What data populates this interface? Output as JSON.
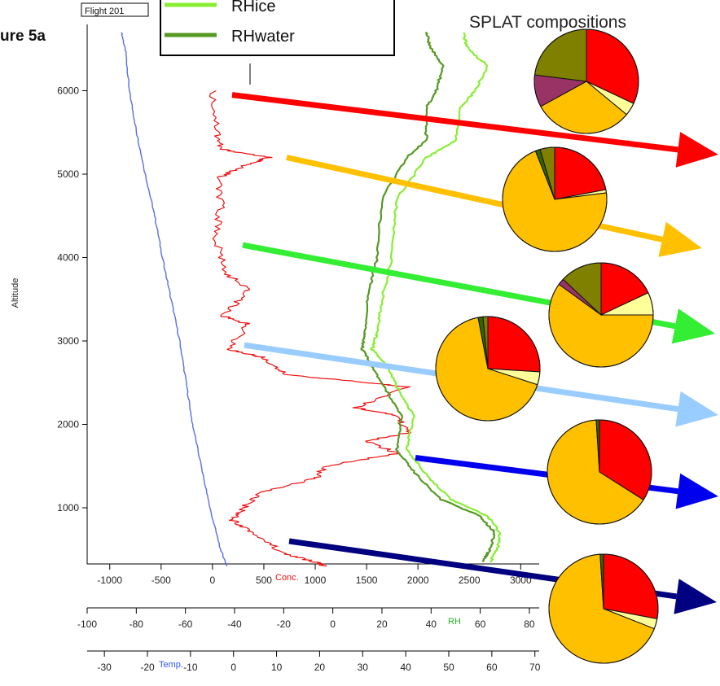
{
  "figure_label": "ure 5a",
  "flight_label": "Flight 201",
  "panel_title": "SPLAT compositions",
  "legend": [
    {
      "label": "RHice",
      "color": "#88ee33"
    },
    {
      "label": "RHwater",
      "color": "#559922"
    }
  ],
  "colors": {
    "temp": "#5a6ee8",
    "conc": "#ee1111",
    "rhice": "#88ee33",
    "rhwater": "#559922",
    "red": "#ff0000",
    "orange": "#ffc000",
    "lightyellow": "#ffff99",
    "maroon": "#993366",
    "olive": "#808000",
    "darkgreen": "#336600",
    "navy": "#000080"
  },
  "chart_data": {
    "type": "line",
    "ylabel": "Altitude",
    "y_ticks": [
      1000,
      2000,
      3000,
      4000,
      5000,
      6000
    ],
    "ylim": [
      300,
      6800
    ],
    "axes": [
      {
        "name": "Conc.",
        "color": "#ee1111",
        "ticks": [
          -1000,
          -500,
          0,
          500,
          1000,
          1500,
          2000,
          2500,
          3000
        ],
        "range": [
          -1220,
          3180
        ]
      },
      {
        "name": "RH",
        "color": "#22bb22",
        "ticks": [
          -100,
          -80,
          -60,
          -40,
          -20,
          0,
          20,
          40,
          60,
          80
        ],
        "range": [
          -100,
          84
        ]
      },
      {
        "name": "Temp.",
        "color": "#3355ff",
        "ticks": [
          -30,
          -20,
          -10,
          0,
          10,
          20,
          30,
          40,
          50,
          60,
          70
        ],
        "range": [
          -34,
          71
        ]
      }
    ],
    "series": [
      {
        "key": "temp",
        "axis": 2,
        "points": [
          [
            -26,
            6700
          ],
          [
            -25,
            6450
          ],
          [
            -24.2,
            6000
          ],
          [
            -22.5,
            5500
          ],
          [
            -20.5,
            5000
          ],
          [
            -18.3,
            4500
          ],
          [
            -16.5,
            4000
          ],
          [
            -14.5,
            3500
          ],
          [
            -12.5,
            3000
          ],
          [
            -11,
            2500
          ],
          [
            -9.5,
            2000
          ],
          [
            -7.5,
            1500
          ],
          [
            -5.5,
            1000
          ],
          [
            -3,
            500
          ],
          [
            -1.5,
            300
          ]
        ]
      },
      {
        "key": "conc",
        "points": [
          [
            0,
            6000
          ],
          [
            50,
            5500
          ],
          [
            80,
            5300
          ],
          [
            550,
            5200
          ],
          [
            300,
            5100
          ],
          [
            50,
            4950
          ],
          [
            80,
            4600
          ],
          [
            30,
            4200
          ],
          [
            150,
            3800
          ],
          [
            350,
            3600
          ],
          [
            100,
            3300
          ],
          [
            350,
            3200
          ],
          [
            150,
            2900
          ],
          [
            500,
            2800
          ],
          [
            700,
            2600
          ],
          [
            1500,
            2500
          ],
          [
            1900,
            2450
          ],
          [
            1400,
            2200
          ],
          [
            1800,
            2100
          ],
          [
            1900,
            1900
          ],
          [
            1500,
            1800
          ],
          [
            1800,
            1650
          ],
          [
            1100,
            1500
          ],
          [
            1000,
            1350
          ],
          [
            500,
            1200
          ],
          [
            300,
            1000
          ],
          [
            200,
            850
          ],
          [
            400,
            700
          ],
          [
            700,
            450
          ],
          [
            1000,
            350
          ],
          [
            1100,
            300
          ]
        ]
      },
      {
        "key": "rhice",
        "axis": 1,
        "points": [
          [
            53,
            6700
          ],
          [
            55,
            6500
          ],
          [
            63,
            6300
          ],
          [
            58,
            6000
          ],
          [
            52,
            5800
          ],
          [
            50,
            5400
          ],
          [
            38,
            5200
          ],
          [
            26,
            4700
          ],
          [
            24,
            4000
          ],
          [
            20,
            3500
          ],
          [
            18,
            3100
          ],
          [
            16,
            2900
          ],
          [
            22,
            2700
          ],
          [
            27,
            2400
          ],
          [
            33,
            2100
          ],
          [
            30,
            1700
          ],
          [
            38,
            1400
          ],
          [
            48,
            1100
          ],
          [
            63,
            900
          ],
          [
            68,
            700
          ],
          [
            67,
            500
          ],
          [
            64,
            350
          ]
        ]
      },
      {
        "key": "rhwater",
        "axis": 1,
        "points": [
          [
            38,
            6700
          ],
          [
            40,
            6500
          ],
          [
            45,
            6300
          ],
          [
            42,
            6000
          ],
          [
            38,
            5800
          ],
          [
            38,
            5400
          ],
          [
            30,
            5200
          ],
          [
            20,
            4700
          ],
          [
            18,
            4000
          ],
          [
            14,
            3500
          ],
          [
            13,
            3100
          ],
          [
            12,
            2900
          ],
          [
            16,
            2700
          ],
          [
            22,
            2400
          ],
          [
            28,
            2100
          ],
          [
            26,
            1700
          ],
          [
            34,
            1400
          ],
          [
            44,
            1100
          ],
          [
            60,
            900
          ],
          [
            66,
            700
          ],
          [
            64,
            500
          ],
          [
            61,
            350
          ]
        ]
      }
    ],
    "compositions": [
      {
        "marker_altitude": 5950,
        "arrow_color": "#ff0000",
        "slices": [
          {
            "color": "#ff0000",
            "value": 32
          },
          {
            "color": "#ffff99",
            "value": 4
          },
          {
            "color": "#ffc000",
            "value": 31
          },
          {
            "color": "#993366",
            "value": 10
          },
          {
            "color": "#808000",
            "value": 23
          }
        ]
      },
      {
        "marker_altitude": 5200,
        "arrow_color": "#ffc000",
        "slices": [
          {
            "color": "#ff0000",
            "value": 22
          },
          {
            "color": "#ffff99",
            "value": 1
          },
          {
            "color": "#ffc000",
            "value": 71
          },
          {
            "color": "#336600",
            "value": 1.5
          },
          {
            "color": "#808000",
            "value": 4.5
          }
        ]
      },
      {
        "marker_altitude": 4150,
        "arrow_color": "#33ee33",
        "slices": [
          {
            "color": "#ff0000",
            "value": 18
          },
          {
            "color": "#ffff99",
            "value": 7
          },
          {
            "color": "#ffc000",
            "value": 60
          },
          {
            "color": "#993366",
            "value": 2
          },
          {
            "color": "#808000",
            "value": 13
          }
        ]
      },
      {
        "marker_altitude": 2950,
        "arrow_color": "#99ccff",
        "slices": [
          {
            "color": "#ff0000",
            "value": 26
          },
          {
            "color": "#ffff99",
            "value": 4
          },
          {
            "color": "#ffc000",
            "value": 67
          },
          {
            "color": "#336600",
            "value": 1.5
          },
          {
            "color": "#808000",
            "value": 1.5
          }
        ]
      },
      {
        "marker_altitude": 1600,
        "arrow_color": "#0000ee",
        "slices": [
          {
            "color": "#ff0000",
            "value": 34
          },
          {
            "color": "#ffc000",
            "value": 65
          },
          {
            "color": "#336600",
            "value": 1
          }
        ]
      },
      {
        "marker_altitude": 600,
        "arrow_color": "#000080",
        "slices": [
          {
            "color": "#ff0000",
            "value": 28
          },
          {
            "color": "#ffff99",
            "value": 3
          },
          {
            "color": "#ffc000",
            "value": 68
          },
          {
            "color": "#336600",
            "value": 1
          }
        ]
      }
    ]
  }
}
